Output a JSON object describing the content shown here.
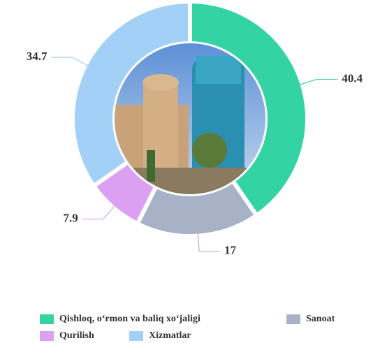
{
  "chart_data": {
    "type": "donut",
    "categories": [
      "Qishloq, o‘rmon va baliq xo‘jaligi",
      "Sanoat",
      "Qurilish",
      "Xizmatlar"
    ],
    "values": [
      40.4,
      17,
      7.9,
      34.7
    ],
    "colors": [
      "#33d3a4",
      "#a8b2c7",
      "#dba0f2",
      "#a3d0f6"
    ],
    "legend": "bottom"
  }
}
